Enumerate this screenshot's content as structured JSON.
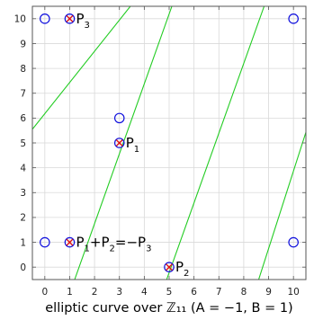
{
  "chart_data": {
    "type": "scatter",
    "xlabel": "elliptic curve over ℤ₁₁ (A = −1, B = 1)",
    "xlim": [
      -0.5,
      10.5
    ],
    "ylim": [
      -0.5,
      10.5
    ],
    "x_ticks": [
      "0",
      "1",
      "2",
      "3",
      "4",
      "5",
      "6",
      "7",
      "8",
      "9",
      "10"
    ],
    "y_ticks": [
      "0",
      "1",
      "2",
      "3",
      "4",
      "5",
      "6",
      "7",
      "8",
      "9",
      "10"
    ],
    "grid": true,
    "colors": {
      "curve": "#22cc22",
      "points": "#1010dd",
      "cross": "#dd1111",
      "grid": "#d9d9d9",
      "axis": "#555555"
    },
    "curve_lines": [
      {
        "x": [
          -0.5,
          3.44
        ],
        "y": [
          5.55,
          10.5
        ]
      },
      {
        "x": [
          1.2,
          5.11
        ],
        "y": [
          -0.5,
          10.5
        ]
      },
      {
        "x": [
          4.9,
          8.82
        ],
        "y": [
          -0.5,
          10.5
        ]
      },
      {
        "x": [
          8.6,
          10.5
        ],
        "y": [
          -0.5,
          5.43
        ]
      }
    ],
    "points": [
      {
        "x": 0,
        "y": 1
      },
      {
        "x": 0,
        "y": 10
      },
      {
        "x": 1,
        "y": 1
      },
      {
        "x": 1,
        "y": 10
      },
      {
        "x": 3,
        "y": 5
      },
      {
        "x": 3,
        "y": 6
      },
      {
        "x": 5,
        "y": 0
      },
      {
        "x": 10,
        "y": 1
      },
      {
        "x": 10,
        "y": 10
      }
    ],
    "marked_points": [
      {
        "x": 1,
        "y": 10
      },
      {
        "x": 3,
        "y": 5
      },
      {
        "x": 1,
        "y": 1
      },
      {
        "x": 5,
        "y": 0
      }
    ],
    "annotations": [
      {
        "x": 1,
        "y": 10,
        "parts": [
          {
            "t": "P",
            "s": false
          },
          {
            "t": "3",
            "s": true
          }
        ]
      },
      {
        "x": 3,
        "y": 5,
        "parts": [
          {
            "t": "P",
            "s": false
          },
          {
            "t": "1",
            "s": true
          }
        ]
      },
      {
        "x": 1,
        "y": 1,
        "parts": [
          {
            "t": "P",
            "s": false
          },
          {
            "t": "1",
            "s": true
          },
          {
            "t": "+P",
            "s": false
          },
          {
            "t": "2",
            "s": true
          },
          {
            "t": "=−P",
            "s": false
          },
          {
            "t": "3",
            "s": true
          }
        ]
      },
      {
        "x": 5,
        "y": 0,
        "parts": [
          {
            "t": "P",
            "s": false
          },
          {
            "t": "2",
            "s": true
          }
        ]
      }
    ]
  }
}
